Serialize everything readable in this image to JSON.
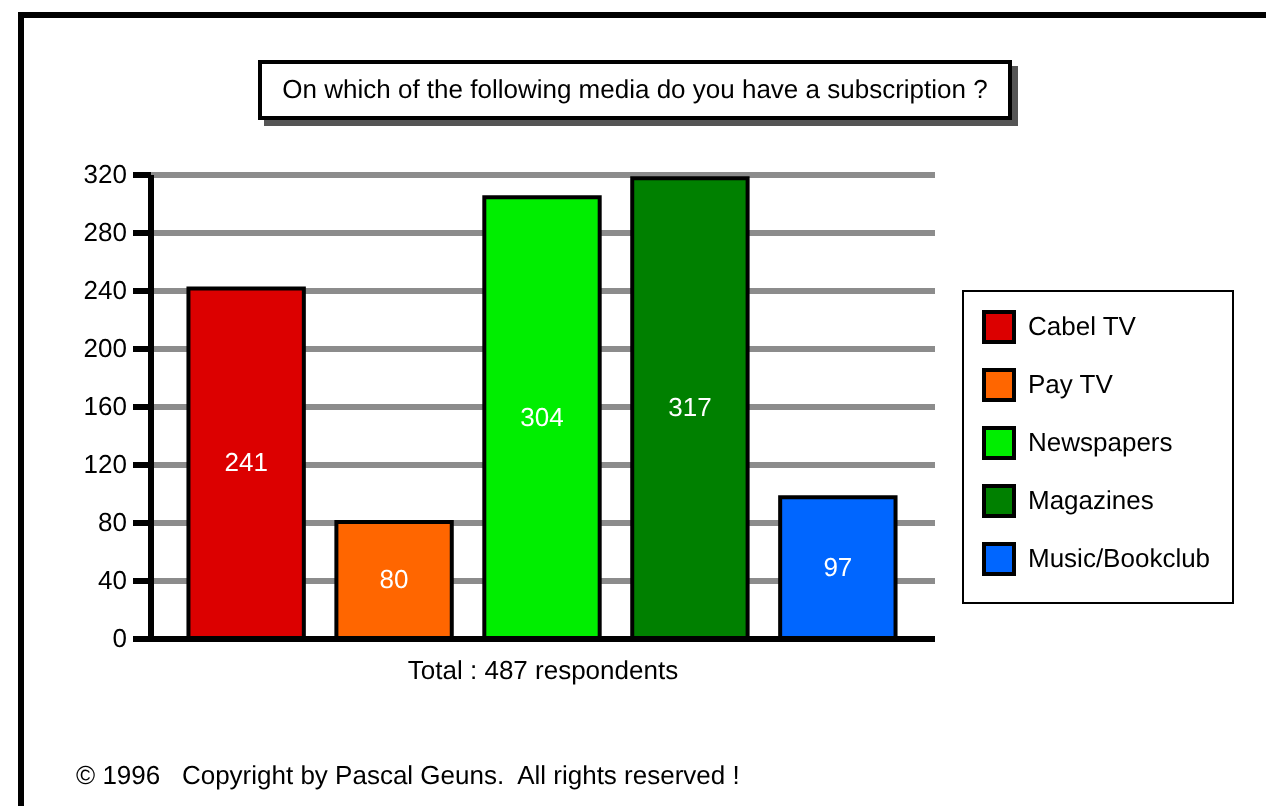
{
  "chart_data": {
    "type": "bar",
    "title": "On which of the following media do you have a subscription ?",
    "xlabel": "Total : 487 respondents",
    "categories": [
      null
    ],
    "series": [
      {
        "name": "Cabel TV",
        "color": "#dc0000",
        "values": [
          241
        ]
      },
      {
        "name": "Pay TV",
        "color": "#ff6600",
        "values": [
          80
        ]
      },
      {
        "name": "Newspapers",
        "color": "#00ee00",
        "values": [
          304
        ]
      },
      {
        "name": "Magazines",
        "color": "#008000",
        "values": [
          317
        ]
      },
      {
        "name": "Music/Bookclub",
        "color": "#0066ff",
        "values": [
          97
        ]
      }
    ],
    "ylim": [
      0,
      320
    ],
    "yticks": [
      0,
      40,
      80,
      120,
      160,
      200,
      240,
      280,
      320
    ],
    "grid": "y",
    "legend": "right",
    "tick_labels": "y",
    "data_labels": true,
    "annotations": [
      "© 1996   Copyright by Pascal Geuns.  All rights reserved !"
    ]
  }
}
